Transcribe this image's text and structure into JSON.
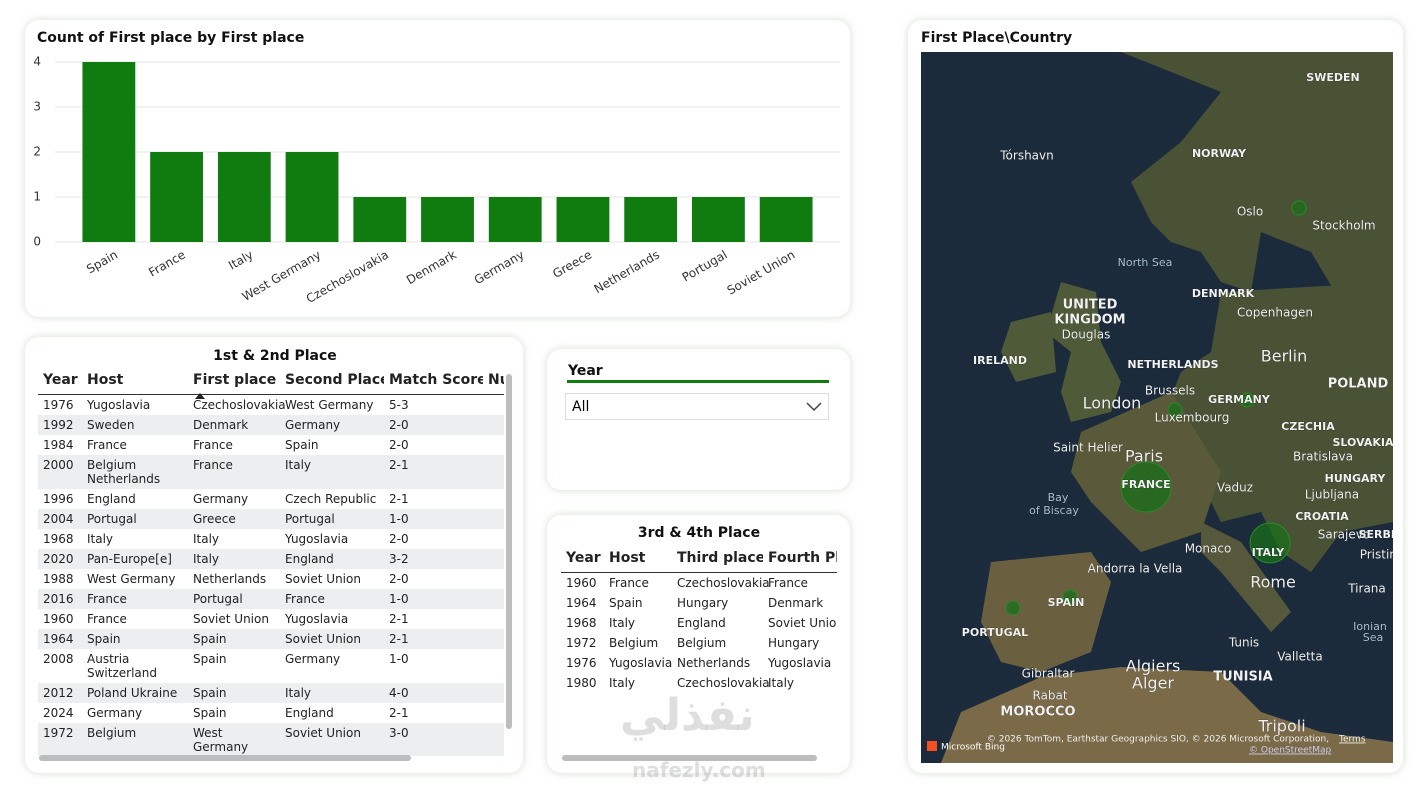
{
  "chart_data": {
    "type": "bar",
    "title": "Count of First place by First place",
    "categories": [
      "Spain",
      "France",
      "Italy",
      "West Germany",
      "Czechoslovakia",
      "Denmark",
      "Germany",
      "Greece",
      "Netherlands",
      "Portugal",
      "Soviet Union"
    ],
    "values": [
      4,
      2,
      2,
      2,
      1,
      1,
      1,
      1,
      1,
      1,
      1
    ],
    "color": "#107c10",
    "ylim": [
      0,
      4
    ],
    "yticks": [
      0,
      1,
      2,
      3,
      4
    ],
    "grid": true
  },
  "table1": {
    "title": "1st & 2nd Place",
    "columns": [
      "Year",
      "Host",
      "First place",
      "Second Place",
      "Match Score",
      "Nu"
    ],
    "rows": [
      [
        "1976",
        "Yugoslavia",
        "Czechoslovakia",
        "West Germany",
        "5-3"
      ],
      [
        "1992",
        "Sweden",
        "Denmark",
        "Germany",
        "2-0"
      ],
      [
        "1984",
        "France",
        "France",
        "Spain",
        "2-0"
      ],
      [
        "2000",
        "Belgium Netherlands",
        "France",
        "Italy",
        "2-1"
      ],
      [
        "1996",
        "England",
        "Germany",
        "Czech Republic",
        "2-1"
      ],
      [
        "2004",
        "Portugal",
        "Greece",
        "Portugal",
        "1-0"
      ],
      [
        "1968",
        "Italy",
        "Italy",
        "Yugoslavia",
        "2-0"
      ],
      [
        "2020",
        "Pan-Europe[e]",
        "Italy",
        "England",
        "3-2"
      ],
      [
        "1988",
        "West Germany",
        "Netherlands",
        "Soviet Union",
        "2-0"
      ],
      [
        "2016",
        "France",
        "Portugal",
        "France",
        "1-0"
      ],
      [
        "1960",
        "France",
        "Soviet Union",
        "Yugoslavia",
        "2-1"
      ],
      [
        "1964",
        "Spain",
        "Spain",
        "Soviet Union",
        "2-1"
      ],
      [
        "2008",
        "Austria Switzerland",
        "Spain",
        "Germany",
        "1-0"
      ],
      [
        "2012",
        "Poland Ukraine",
        "Spain",
        "Italy",
        "4-0"
      ],
      [
        "2024",
        "Germany",
        "Spain",
        "England",
        "2-1"
      ],
      [
        "1972",
        "Belgium",
        "West Germany",
        "Soviet Union",
        "3-0"
      ]
    ]
  },
  "table2": {
    "title": "3rd & 4th Place",
    "columns": [
      "Year",
      "Host",
      "Third place",
      "Fourth Pla"
    ],
    "rows": [
      [
        "1960",
        "France",
        "Czechoslovakia",
        "France"
      ],
      [
        "1964",
        "Spain",
        "Hungary",
        "Denmark"
      ],
      [
        "1968",
        "Italy",
        "England",
        "Soviet Union"
      ],
      [
        "1972",
        "Belgium",
        "Belgium",
        "Hungary"
      ],
      [
        "1976",
        "Yugoslavia",
        "Netherlands",
        "Yugoslavia"
      ],
      [
        "1980",
        "Italy",
        "Czechoslovakia",
        "Italy"
      ]
    ]
  },
  "slicer": {
    "title": "Year",
    "selected": "All"
  },
  "map": {
    "title": "First Place\\Country",
    "labels": [
      "SWEDEN",
      "Tórshavn",
      "NORWAY",
      "Oslo",
      "Stockholm",
      "North Sea",
      "DENMARK",
      "Copenhagen",
      "UNITED",
      "KINGDOM",
      "Douglas",
      "IRELAND",
      "NETHERLANDS",
      "Berlin",
      "Brussels",
      "GERMANY",
      "London",
      "Luxembourg",
      "POLAND",
      "CZECHIA",
      "SLOVAKIA",
      "Saint Helier",
      "Paris",
      "Bratislava",
      "HUNGARY",
      "FRANCE",
      "Vaduz",
      "Ljubljana",
      "Bay",
      "of Biscay",
      "CROATIA",
      "Sarajevo",
      "SERBIA",
      "Monaco",
      "ITALY",
      "Pristina",
      "Andorra la Vella",
      "Rome",
      "Tirana",
      "SPAIN",
      "PORTUGAL",
      "Ionian",
      "Sea",
      "Tunis",
      "Valletta",
      "Algiers",
      "Gibraltar",
      "Alger",
      "TUNISIA",
      "Rabat",
      "MOROCCO",
      "Tripoli"
    ],
    "attribution": "© 2026 TomTom, Earthstar Geographics SIO, © 2026 Microsoft Corporation,",
    "terms": "Terms",
    "osm": "© OpenStreetMap",
    "logo": "Microsoft Bing"
  },
  "watermark": {
    "arabic": "نفذلي",
    "latin": "nafezly.com"
  }
}
